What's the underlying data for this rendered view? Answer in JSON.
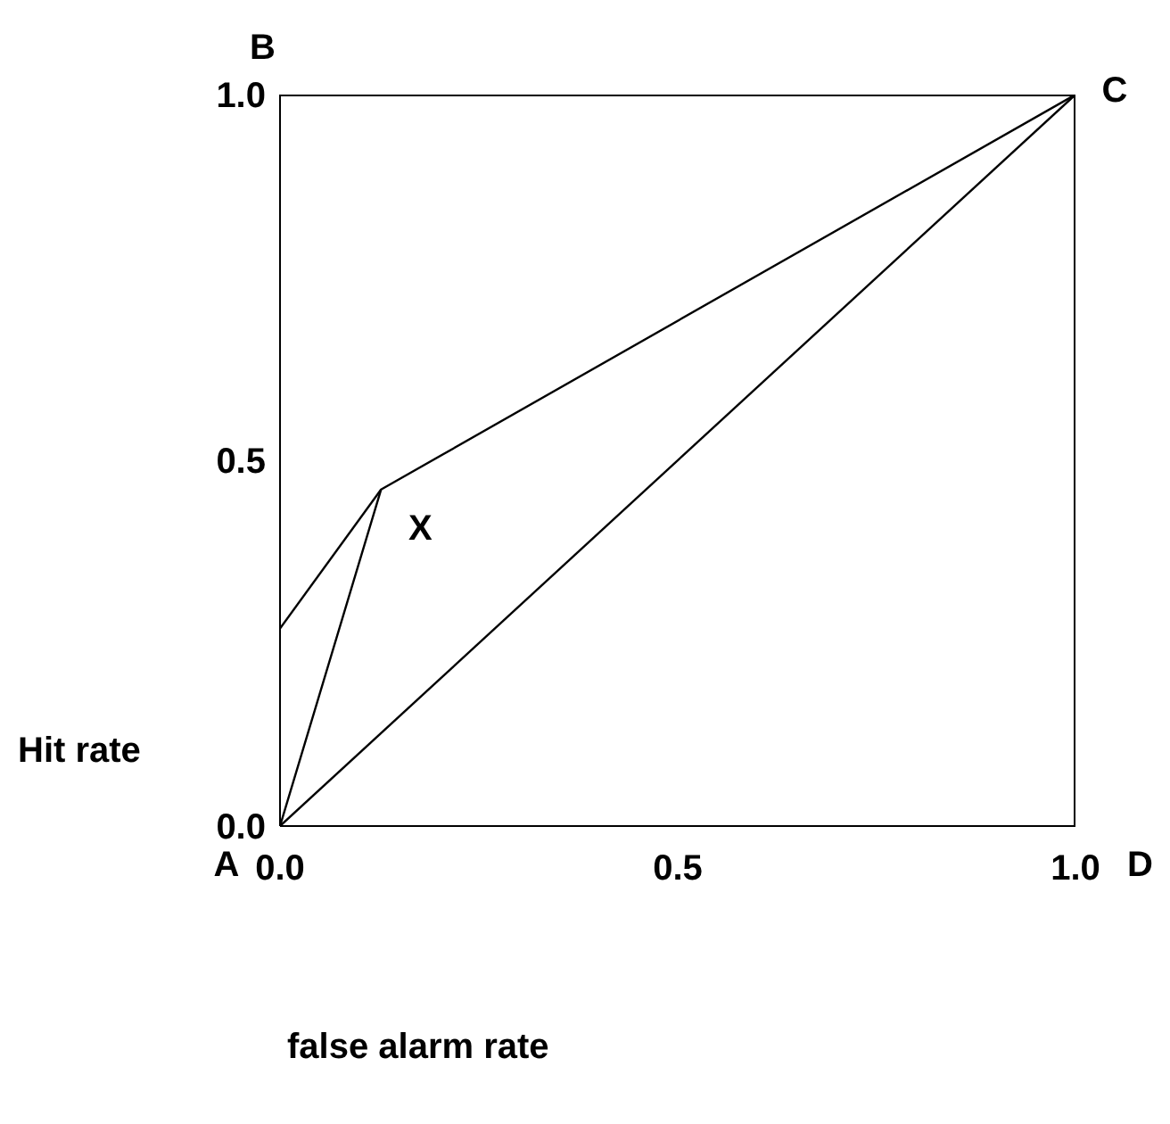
{
  "chart_data": {
    "type": "line",
    "xlabel": "false alarm rate",
    "ylabel": "Hit rate",
    "xlim": [
      0,
      1
    ],
    "ylim": [
      0,
      1
    ],
    "xticks": [
      {
        "value": 0,
        "label": "0.0"
      },
      {
        "value": 0.5,
        "label": "0.5"
      },
      {
        "value": 1,
        "label": "1.0"
      }
    ],
    "yticks": [
      {
        "value": 0,
        "label": "0.0"
      },
      {
        "value": 0.5,
        "label": "0.5"
      },
      {
        "value": 1,
        "label": "1.0"
      }
    ],
    "grid": false,
    "marker": "none",
    "line_style": "solid",
    "series": [
      {
        "color": "#000000",
        "x": [
          0,
          0.127,
          1
        ],
        "values": [
          0,
          0.46,
          1
        ]
      },
      {
        "color": "#000000",
        "x": [
          0,
          1
        ],
        "values": [
          0,
          1
        ]
      },
      {
        "color": "#000000",
        "x": [
          0,
          0.127
        ],
        "values": [
          0.27,
          0.46
        ]
      }
    ],
    "annotations": [
      {
        "text": "A",
        "x": 0,
        "y": 0
      },
      "B",
      {
        "text": "C",
        "x": 1,
        "y": 1
      },
      "D",
      {
        "text": "X",
        "x": 0.127,
        "y": 0.46
      }
    ]
  }
}
